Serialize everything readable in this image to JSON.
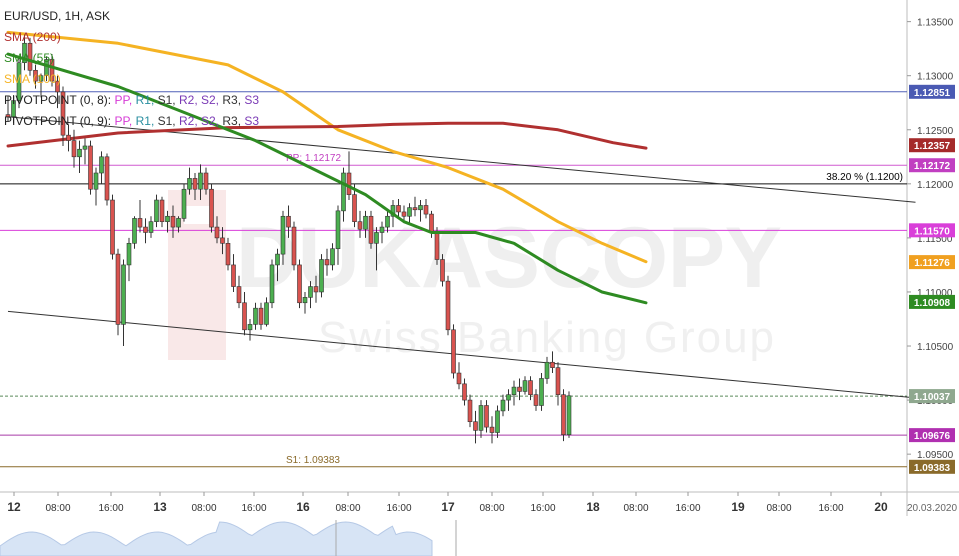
{
  "header": {
    "title": "EUR/USD, 1H, ASK"
  },
  "legend": {
    "sma200": {
      "label": "SMA (200)",
      "color": "#b03030"
    },
    "sma55": {
      "label": "SMA (55)",
      "color": "#2e8b22"
    },
    "sma100": {
      "label": "SMA (100)",
      "color": "#f5b323"
    },
    "pivot8": {
      "label": "PIVOTPOINT (0, 8):",
      "items": [
        "PP,",
        "R1,",
        "S1,",
        "R2,",
        "S2,",
        "R3,",
        "S3"
      ]
    },
    "pivot9": {
      "label": "PIVOTPOINT (0, 9):",
      "items": [
        "PP,",
        "R1,",
        "S1,",
        "R2,",
        "S2,",
        "R3,",
        "S3"
      ]
    },
    "pivot_colors": [
      "#d63ad6",
      "#2a8fa0",
      "#333333",
      "#7a3ab5",
      "#7a3ab5",
      "#333333",
      "#7a3ab5"
    ]
  },
  "chart_data": {
    "type": "candlestick",
    "instrument": "EUR/USD",
    "timeframe": "1H",
    "side": "ASK",
    "ylim": [
      1.0915,
      1.137
    ],
    "y_ticks": [
      "1.13500",
      "1.13000",
      "1.12500",
      "1.12000",
      "1.11500",
      "1.11000",
      "1.10500",
      "1.10000",
      "1.09500"
    ],
    "x_ticks": [
      "12",
      "08:00",
      "16:00",
      "13",
      "08:00",
      "16:00",
      "16",
      "08:00",
      "16:00",
      "17",
      "08:00",
      "16:00",
      "18",
      "08:00",
      "16:00",
      "19",
      "08:00",
      "16:00",
      "20",
      "20.03.2020"
    ],
    "x_ticks_bold": [
      true,
      false,
      false,
      true,
      false,
      false,
      true,
      false,
      false,
      true,
      false,
      false,
      true,
      false,
      false,
      true,
      false,
      false,
      true,
      false
    ],
    "candles": [
      [
        1.1264,
        1.1281,
        1.1258,
        1.1262
      ],
      [
        1.1262,
        1.1282,
        1.1256,
        1.1277
      ],
      [
        1.1277,
        1.1318,
        1.127,
        1.1312
      ],
      [
        1.1312,
        1.1338,
        1.1305,
        1.133
      ],
      [
        1.133,
        1.1335,
        1.13,
        1.1305
      ],
      [
        1.1305,
        1.131,
        1.1288,
        1.1295
      ],
      [
        1.1295,
        1.1302,
        1.128,
        1.13
      ],
      [
        1.13,
        1.1318,
        1.1295,
        1.1315
      ],
      [
        1.1315,
        1.132,
        1.129,
        1.1295
      ],
      [
        1.1295,
        1.13,
        1.127,
        1.1285
      ],
      [
        1.1285,
        1.129,
        1.1235,
        1.1245
      ],
      [
        1.1245,
        1.1255,
        1.123,
        1.124
      ],
      [
        1.124,
        1.125,
        1.1215,
        1.1225
      ],
      [
        1.1225,
        1.124,
        1.121,
        1.1232
      ],
      [
        1.1232,
        1.1242,
        1.1218,
        1.1235
      ],
      [
        1.1235,
        1.124,
        1.119,
        1.1195
      ],
      [
        1.1195,
        1.1215,
        1.118,
        1.121
      ],
      [
        1.121,
        1.123,
        1.12,
        1.1225
      ],
      [
        1.1225,
        1.1228,
        1.118,
        1.1185
      ],
      [
        1.1185,
        1.119,
        1.113,
        1.1135
      ],
      [
        1.1135,
        1.114,
        1.106,
        1.107
      ],
      [
        1.107,
        1.113,
        1.105,
        1.1125
      ],
      [
        1.1125,
        1.115,
        1.111,
        1.1145
      ],
      [
        1.1145,
        1.117,
        1.114,
        1.1168
      ],
      [
        1.1168,
        1.1185,
        1.1155,
        1.116
      ],
      [
        1.116,
        1.1168,
        1.1145,
        1.1155
      ],
      [
        1.1155,
        1.117,
        1.115,
        1.1165
      ],
      [
        1.1165,
        1.119,
        1.116,
        1.1185
      ],
      [
        1.1185,
        1.1188,
        1.116,
        1.1165
      ],
      [
        1.1165,
        1.1175,
        1.1155,
        1.117
      ],
      [
        1.117,
        1.118,
        1.115,
        1.116
      ],
      [
        1.116,
        1.117,
        1.1155,
        1.1168
      ],
      [
        1.1168,
        1.12,
        1.1165,
        1.1195
      ],
      [
        1.1195,
        1.1215,
        1.119,
        1.1205
      ],
      [
        1.1205,
        1.121,
        1.1185,
        1.1195
      ],
      [
        1.1195,
        1.1218,
        1.1185,
        1.121
      ],
      [
        1.121,
        1.1215,
        1.119,
        1.1195
      ],
      [
        1.1195,
        1.12,
        1.1155,
        1.116
      ],
      [
        1.116,
        1.117,
        1.1145,
        1.115
      ],
      [
        1.115,
        1.116,
        1.1135,
        1.1145
      ],
      [
        1.1145,
        1.115,
        1.112,
        1.1125
      ],
      [
        1.1125,
        1.1135,
        1.11,
        1.1105
      ],
      [
        1.1105,
        1.1115,
        1.1085,
        1.109
      ],
      [
        1.109,
        1.11,
        1.106,
        1.1065
      ],
      [
        1.1065,
        1.1075,
        1.1055,
        1.107
      ],
      [
        1.107,
        1.109,
        1.1065,
        1.1085
      ],
      [
        1.1085,
        1.109,
        1.1065,
        1.107
      ],
      [
        1.107,
        1.1095,
        1.1068,
        1.109
      ],
      [
        1.109,
        1.113,
        1.1085,
        1.1125
      ],
      [
        1.1125,
        1.114,
        1.111,
        1.1135
      ],
      [
        1.1135,
        1.1175,
        1.1125,
        1.117
      ],
      [
        1.117,
        1.118,
        1.115,
        1.116
      ],
      [
        1.116,
        1.1165,
        1.112,
        1.1125
      ],
      [
        1.1125,
        1.113,
        1.1085,
        1.109
      ],
      [
        1.109,
        1.11,
        1.108,
        1.1095
      ],
      [
        1.1095,
        1.111,
        1.1085,
        1.1105
      ],
      [
        1.1105,
        1.1115,
        1.109,
        1.11
      ],
      [
        1.11,
        1.1135,
        1.1095,
        1.113
      ],
      [
        1.113,
        1.114,
        1.1115,
        1.1125
      ],
      [
        1.1125,
        1.1145,
        1.112,
        1.114
      ],
      [
        1.114,
        1.118,
        1.1125,
        1.1175
      ],
      [
        1.1175,
        1.1215,
        1.1165,
        1.121
      ],
      [
        1.121,
        1.123,
        1.1185,
        1.119
      ],
      [
        1.119,
        1.12,
        1.116,
        1.1165
      ],
      [
        1.1165,
        1.1175,
        1.115,
        1.1158
      ],
      [
        1.1158,
        1.1175,
        1.115,
        1.117
      ],
      [
        1.117,
        1.1175,
        1.114,
        1.1145
      ],
      [
        1.1145,
        1.116,
        1.112,
        1.1155
      ],
      [
        1.1155,
        1.1165,
        1.1145,
        1.116
      ],
      [
        1.116,
        1.1175,
        1.1155,
        1.117
      ],
      [
        1.117,
        1.1185,
        1.116,
        1.118
      ],
      [
        1.118,
        1.1186,
        1.1168,
        1.1174
      ],
      [
        1.1174,
        1.118,
        1.1165,
        1.117
      ],
      [
        1.117,
        1.1182,
        1.1164,
        1.1178
      ],
      [
        1.1178,
        1.1188,
        1.117,
        1.1176
      ],
      [
        1.1176,
        1.1185,
        1.1165,
        1.118
      ],
      [
        1.118,
        1.1186,
        1.1168,
        1.1172
      ],
      [
        1.1172,
        1.1175,
        1.115,
        1.1155
      ],
      [
        1.1155,
        1.116,
        1.1125,
        1.113
      ],
      [
        1.113,
        1.1135,
        1.1105,
        1.111
      ],
      [
        1.111,
        1.1115,
        1.106,
        1.1065
      ],
      [
        1.1065,
        1.107,
        1.102,
        1.1025
      ],
      [
        1.1025,
        1.1035,
        1.101,
        1.1015
      ],
      [
        1.1015,
        1.102,
        1.0995,
        1.1
      ],
      [
        1.1,
        1.1005,
        1.0975,
        1.098
      ],
      [
        1.098,
        1.099,
        1.096,
        1.0972
      ],
      [
        1.0972,
        1.1,
        1.0965,
        1.0995
      ],
      [
        1.0995,
        1.1,
        1.097,
        1.0975
      ],
      [
        1.0975,
        1.0985,
        1.096,
        1.097
      ],
      [
        1.097,
        1.0995,
        1.0965,
        1.099
      ],
      [
        1.099,
        1.1005,
        1.0985,
        1.1
      ],
      [
        1.1,
        1.101,
        1.099,
        1.1005
      ],
      [
        1.1005,
        1.1018,
        1.0995,
        1.1012
      ],
      [
        1.1012,
        1.102,
        1.1,
        1.1008
      ],
      [
        1.1008,
        1.1022,
        1.1005,
        1.1018
      ],
      [
        1.1018,
        1.1022,
        1.1,
        1.1005
      ],
      [
        1.1005,
        1.101,
        1.099,
        1.0995
      ],
      [
        1.0995,
        1.1025,
        1.099,
        1.102
      ],
      [
        1.102,
        1.104,
        1.1015,
        1.1035
      ],
      [
        1.1035,
        1.1045,
        1.1025,
        1.103
      ],
      [
        1.103,
        1.1035,
        1.0995,
        1.1005
      ],
      [
        1.1005,
        1.101,
        1.0962,
        1.0968
      ],
      [
        1.0968,
        1.1008,
        1.0965,
        1.1004
      ]
    ],
    "sma200": [
      [
        0,
        1.1235
      ],
      [
        20,
        1.1247
      ],
      [
        40,
        1.1252
      ],
      [
        60,
        1.1253
      ],
      [
        70,
        1.1255
      ],
      [
        80,
        1.1256
      ],
      [
        90,
        1.1256
      ],
      [
        100,
        1.125
      ],
      [
        110,
        1.1238
      ],
      [
        116,
        1.1233
      ]
    ],
    "sma55": [
      [
        0,
        1.132
      ],
      [
        20,
        1.129
      ],
      [
        35,
        1.126
      ],
      [
        45,
        1.124
      ],
      [
        55,
        1.1215
      ],
      [
        65,
        1.119
      ],
      [
        72,
        1.1165
      ],
      [
        77,
        1.1155
      ],
      [
        85,
        1.1155
      ],
      [
        92,
        1.1145
      ],
      [
        100,
        1.112
      ],
      [
        108,
        1.11
      ],
      [
        116,
        1.109
      ]
    ],
    "sma100": [
      [
        0,
        1.134
      ],
      [
        20,
        1.133
      ],
      [
        40,
        1.131
      ],
      [
        50,
        1.1285
      ],
      [
        60,
        1.125
      ],
      [
        70,
        1.123
      ],
      [
        80,
        1.1215
      ],
      [
        90,
        1.1195
      ],
      [
        100,
        1.1165
      ],
      [
        108,
        1.1145
      ],
      [
        116,
        1.1128
      ]
    ],
    "trendlines": [
      {
        "from": [
          0,
          1.1262
        ],
        "to": [
          165,
          1.1183
        ],
        "color": "#333333"
      },
      {
        "from": [
          0,
          1.1082
        ],
        "to": [
          165,
          1.1002
        ],
        "color": "#333333"
      }
    ],
    "levels": [
      {
        "value": 1.12851,
        "label": "1.12851",
        "color": "#4a5ab3",
        "line": "#5060b8",
        "style": "solid",
        "text": ""
      },
      {
        "value": 1.12172,
        "label": "1.12172",
        "color": "#c13fc1",
        "line": "#d05ad0",
        "style": "solid",
        "text": "PP: 1.12172"
      },
      {
        "value": 1.12,
        "label": "",
        "color": "#000000",
        "line": "#111111",
        "style": "solid",
        "text": "38.20 % (1.1200)"
      },
      {
        "value": 1.1157,
        "label": "1.11570",
        "color": "#d93fd9",
        "line": "#d93fd9",
        "style": "solid",
        "text": ""
      },
      {
        "value": 1.10037,
        "label": "1.10037",
        "color": "#8fa88f",
        "line": "#5a8a5a",
        "style": "dashed",
        "text": ""
      },
      {
        "value": 1.09676,
        "label": "1.09676",
        "color": "#b030b0",
        "line": "#a83aa8",
        "style": "solid",
        "text": ""
      },
      {
        "value": 1.09383,
        "label": "1.09383",
        "color": "#8a6a2a",
        "line": "#8a6a2a",
        "style": "solid",
        "text": "S1: 1.09383"
      }
    ],
    "price_tags": [
      {
        "value": 1.12357,
        "label": "1.12357",
        "color": "#a52a2a"
      },
      {
        "value": 1.11276,
        "label": "1.11276",
        "color": "#f0a020"
      },
      {
        "value": 1.10908,
        "label": "1.10908",
        "color": "#2e8b22"
      }
    ],
    "watermark": {
      "line1": "DUKASCOPY",
      "line2": "Swiss Banking Group"
    }
  }
}
